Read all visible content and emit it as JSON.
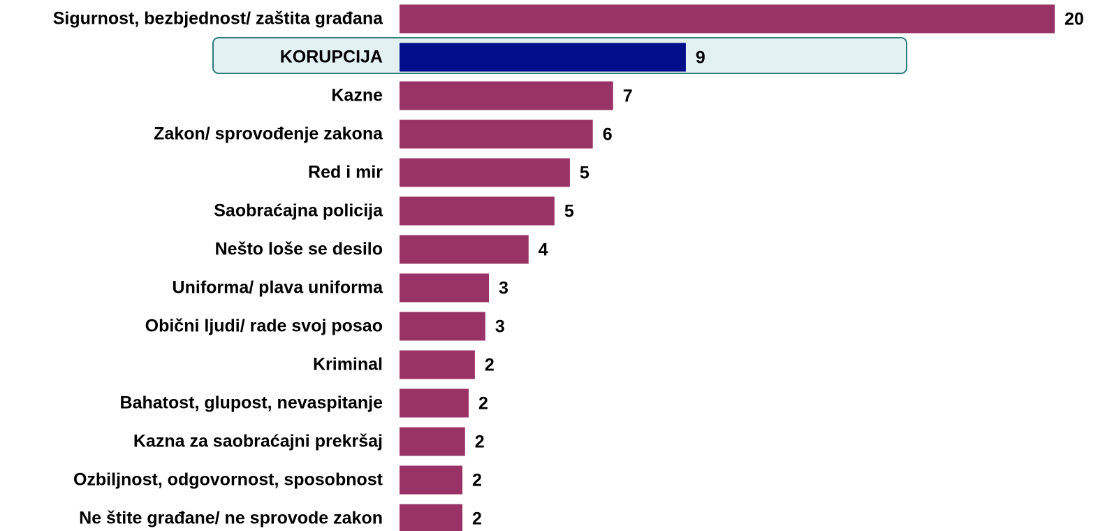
{
  "chart_data": {
    "type": "bar",
    "orientation": "horizontal",
    "categories": [
      "Sigurnost, bezbjednost/ zaštita građana",
      "KORUPCIJA",
      "Kazne",
      "Zakon/ sprovođenje zakona",
      "Red i mir",
      "Saobraćajna policija",
      "Nešto loše se desilo",
      "Uniforma/ plava uniforma",
      "Obični ljudi/ rade svoj posao",
      "Kriminal",
      "Bahatost, glupost, nevaspitanje",
      "Kazna za saobraćajni prekršaj",
      "Ozbiljnost, odgovornost, sposobnost",
      "Ne štite građane/ ne sprovode zakon"
    ],
    "values": [
      20,
      8.74,
      6.52,
      5.9,
      5.2,
      4.73,
      3.94,
      2.73,
      2.62,
      2.3,
      2.11,
      2.0,
      1.92,
      1.92
    ],
    "value_labels": [
      "20",
      "9",
      "7",
      "6",
      "5",
      "5",
      "4",
      "3",
      "3",
      "2",
      "2",
      "2",
      "2",
      "2"
    ],
    "colors": [
      "#993366",
      "#000e8a",
      "#993366",
      "#993366",
      "#993366",
      "#993366",
      "#993366",
      "#993366",
      "#993366",
      "#993366",
      "#993366",
      "#993366",
      "#993366",
      "#993366"
    ],
    "xlim": [
      0,
      20
    ]
  }
}
